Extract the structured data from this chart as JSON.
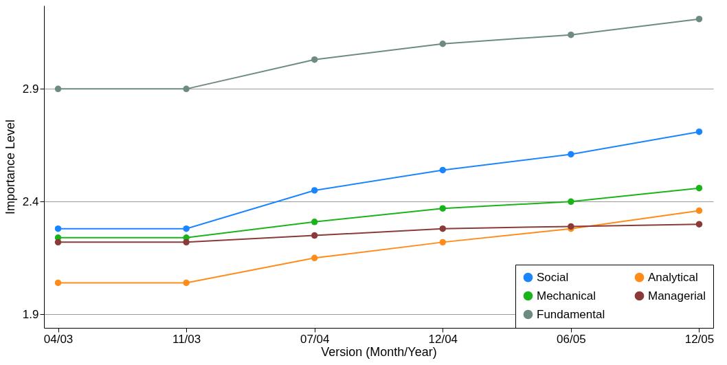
{
  "chart_data": {
    "type": "line",
    "xlabel": "Version (Month/Year)",
    "ylabel": "Importance Level",
    "categories": [
      "04/03",
      "11/03",
      "07/04",
      "12/04",
      "06/05",
      "12/05"
    ],
    "ylim": [
      1.84,
      3.27
    ],
    "yticks": [
      1.9,
      2.4,
      2.9
    ],
    "grid": "y",
    "legend": "bottom right",
    "marker": "circle",
    "line_style": "solid",
    "series": [
      {
        "name": "Social",
        "color": "#1a85ff",
        "values": [
          2.28,
          2.28,
          2.45,
          2.54,
          2.61,
          2.71
        ]
      },
      {
        "name": "Mechanical",
        "color": "#19b419",
        "values": [
          2.24,
          2.24,
          2.31,
          2.37,
          2.4,
          2.46
        ]
      },
      {
        "name": "Fundamental",
        "color": "#6e8b82",
        "values": [
          2.9,
          2.9,
          3.03,
          3.1,
          3.14,
          3.21
        ]
      },
      {
        "name": "Analytical",
        "color": "#ff8c1a",
        "values": [
          2.04,
          2.04,
          2.15,
          2.22,
          2.28,
          2.36
        ]
      },
      {
        "name": "Managerial",
        "color": "#8b3a3a",
        "values": [
          2.22,
          2.22,
          2.25,
          2.28,
          2.29,
          2.3
        ]
      }
    ]
  }
}
